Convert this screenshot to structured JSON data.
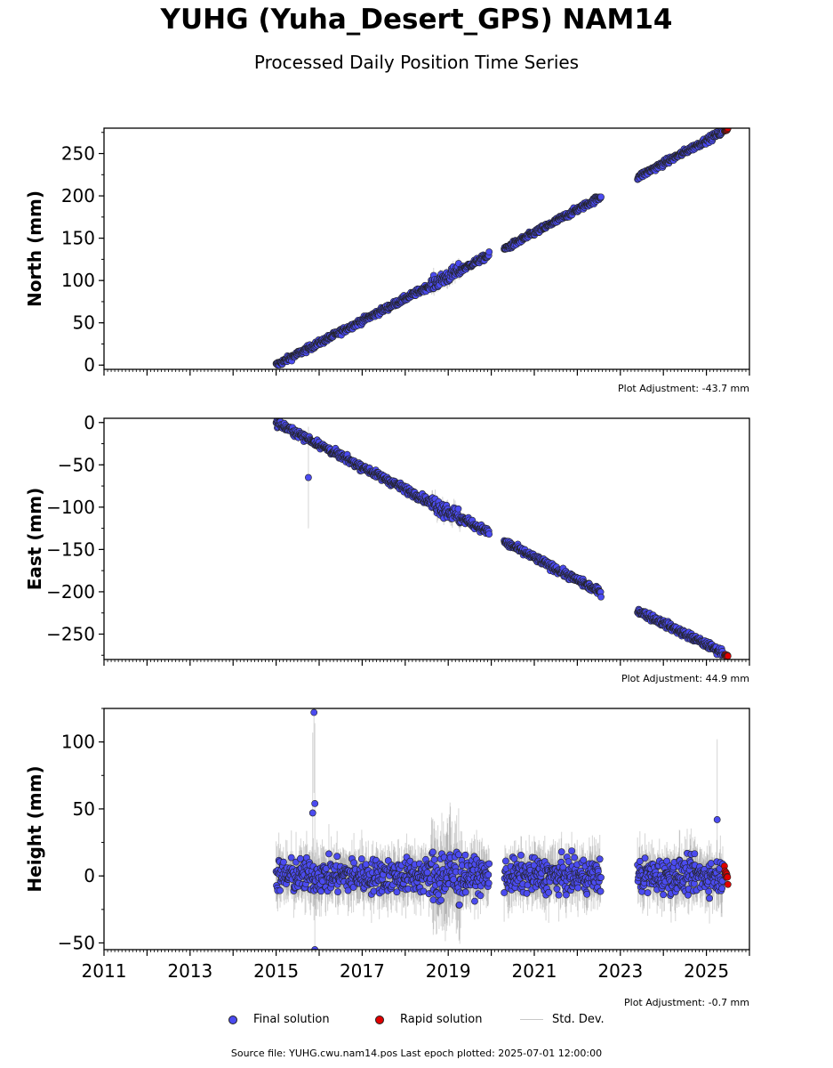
{
  "page": {
    "title": "YUHG (Yuha_Desert_GPS) NAM14",
    "subtitle": "Processed Daily Position Time Series",
    "footer": "Source file: YUHG.cwu.nam14.pos  Last epoch plotted: 2025-07-01 12:00:00"
  },
  "legend": {
    "final": "Final solution",
    "rapid": "Rapid solution",
    "std": "Std. Dev."
  },
  "colors": {
    "final": "#4b4bf0",
    "rapid": "#e00000",
    "std": "#c8c8c8",
    "marker_edge": "#222222"
  },
  "chart_data": [
    {
      "type": "scatter",
      "ylabel": "North (mm)",
      "xlim": [
        2011,
        2026
      ],
      "ylim": [
        -5,
        280
      ],
      "yticks": [
        0,
        50,
        100,
        150,
        200,
        250
      ],
      "xtick_labels_shown": false,
      "adjustment": "Plot Adjustment: -43.7 mm",
      "series": [
        {
          "kind": "final_trend",
          "x": [
            2015.0,
            2019.95,
            2020.3,
            2022.55,
            2023.4,
            2025.38
          ],
          "y": [
            0,
            130,
            137,
            199,
            222,
            276
          ]
        },
        {
          "kind": "rapid",
          "x": [
            2025.42,
            2025.5
          ],
          "y": [
            277,
            279
          ]
        }
      ],
      "noise": 2.5
    },
    {
      "type": "scatter",
      "ylabel": "East (mm)",
      "xlim": [
        2011,
        2026
      ],
      "ylim": [
        -280,
        5
      ],
      "yticks": [
        0,
        -50,
        -100,
        -150,
        -200,
        -250
      ],
      "xtick_labels_shown": false,
      "adjustment": "Plot Adjustment: 44.9 mm",
      "outliers": [
        {
          "x": 2015.75,
          "y": -65
        }
      ],
      "series": [
        {
          "kind": "final_trend",
          "x": [
            2015.0,
            2019.95,
            2020.3,
            2022.55,
            2023.4,
            2025.38
          ],
          "y": [
            0,
            -130,
            -141,
            -201,
            -222,
            -272
          ]
        },
        {
          "kind": "rapid",
          "x": [
            2025.42,
            2025.5
          ],
          "y": [
            -274,
            -276
          ]
        }
      ],
      "noise": 3
    },
    {
      "type": "scatter",
      "ylabel": "Height (mm)",
      "xlim": [
        2011,
        2026
      ],
      "ylim": [
        -55,
        125
      ],
      "yticks": [
        100,
        50,
        0,
        -50
      ],
      "xticks": [
        "2011",
        "2013",
        "2015",
        "2017",
        "2019",
        "2021",
        "2023",
        "2025"
      ],
      "adjustment": "Plot Adjustment: -0.7 mm",
      "outliers": [
        {
          "x": 2015.88,
          "y": 122
        },
        {
          "x": 2015.9,
          "y": 54
        },
        {
          "x": 2015.85,
          "y": 47
        },
        {
          "x": 2025.25,
          "y": 42
        },
        {
          "x": 2015.9,
          "y": -55
        }
      ],
      "series": [
        {
          "kind": "final_trend",
          "x": [
            2015.0,
            2019.95,
            2020.3,
            2022.55,
            2023.4,
            2025.38
          ],
          "y": [
            0,
            0,
            0,
            0,
            0,
            0
          ]
        },
        {
          "kind": "rapid",
          "x": [
            2025.42,
            2025.5
          ],
          "y": [
            5,
            -3
          ]
        }
      ],
      "noise": 9
    }
  ]
}
